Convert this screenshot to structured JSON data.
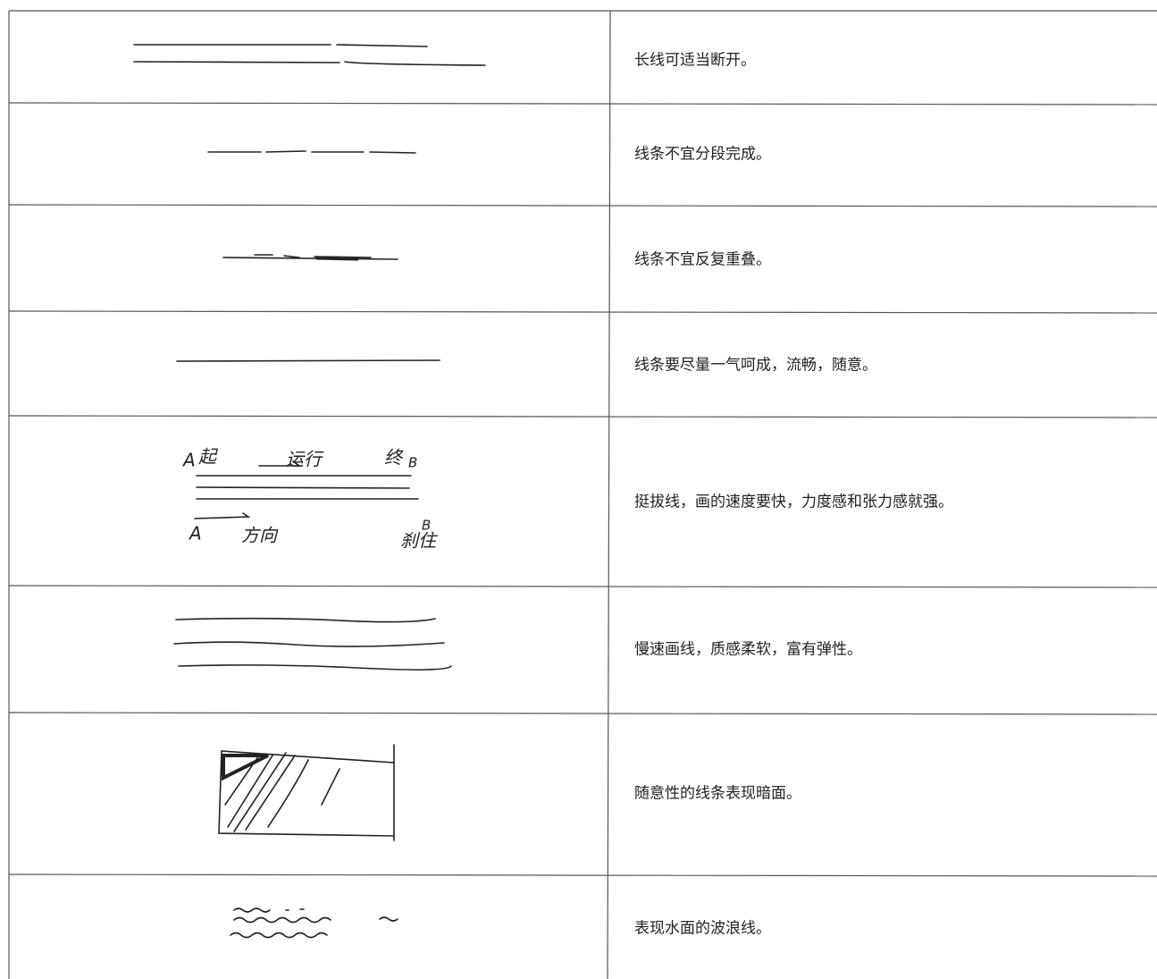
{
  "table": {
    "rows": [
      {
        "text": "长线可适当断开。"
      },
      {
        "text": "线条不宜分段完成。"
      },
      {
        "text": "线条不宜反复重叠。"
      },
      {
        "text": "线条要尽量一气呵成，流畅，随意。"
      },
      {
        "text": "挺拔线，画的速度要快，力度感和张力感就强。",
        "sketch_labels": [
          "A",
          "起",
          "运行",
          "终",
          "B",
          "A",
          "方向",
          "B",
          "刹住"
        ]
      },
      {
        "text": "慢速画线，质感柔软，富有弹性。"
      },
      {
        "text": "随意性的线条表现暗面。"
      },
      {
        "text": "表现水面的波浪线。"
      }
    ]
  }
}
